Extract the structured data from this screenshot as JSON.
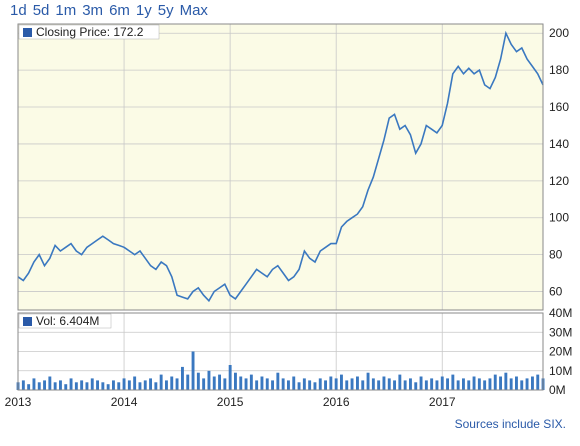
{
  "range_buttons": [
    "1d",
    "5d",
    "1m",
    "3m",
    "6m",
    "1y",
    "5y",
    "Max"
  ],
  "source": "Sources include SIX.",
  "colors": {
    "price_bg": "#fbfbe6",
    "vol_bg": "#ffffff",
    "line": "#3a78c0",
    "bar": "#3a78c0",
    "legend_box": "#2a5aa8",
    "grid": "#c8c8c8",
    "frame": "#8a8a8a"
  },
  "chart_data": [
    {
      "type": "line",
      "legend": "Closing Price: 172.2",
      "ylim": [
        50,
        205
      ],
      "yticks": [
        60,
        80,
        100,
        120,
        140,
        160,
        180,
        200
      ],
      "x_range": [
        2013.0,
        2017.95
      ],
      "xticks": [
        "2013",
        "2014",
        "2015",
        "2016",
        "2017"
      ],
      "grid": true,
      "x": [
        2013.0,
        2013.05,
        2013.1,
        2013.15,
        2013.2,
        2013.25,
        2013.3,
        2013.35,
        2013.4,
        2013.45,
        2013.5,
        2013.55,
        2013.6,
        2013.65,
        2013.7,
        2013.75,
        2013.8,
        2013.85,
        2013.9,
        2013.95,
        2014.0,
        2014.05,
        2014.1,
        2014.15,
        2014.2,
        2014.25,
        2014.3,
        2014.35,
        2014.4,
        2014.45,
        2014.5,
        2014.55,
        2014.6,
        2014.65,
        2014.7,
        2014.75,
        2014.8,
        2014.85,
        2014.9,
        2014.95,
        2015.0,
        2015.05,
        2015.1,
        2015.15,
        2015.2,
        2015.25,
        2015.3,
        2015.35,
        2015.4,
        2015.45,
        2015.5,
        2015.55,
        2015.6,
        2015.65,
        2015.7,
        2015.75,
        2015.8,
        2015.85,
        2015.9,
        2015.95,
        2016.0,
        2016.05,
        2016.1,
        2016.15,
        2016.2,
        2016.25,
        2016.3,
        2016.35,
        2016.4,
        2016.45,
        2016.5,
        2016.55,
        2016.6,
        2016.65,
        2016.7,
        2016.75,
        2016.8,
        2016.85,
        2016.9,
        2016.95,
        2017.0,
        2017.05,
        2017.1,
        2017.15,
        2017.2,
        2017.25,
        2017.3,
        2017.35,
        2017.4,
        2017.45,
        2017.5,
        2017.55,
        2017.6,
        2017.65,
        2017.7,
        2017.75,
        2017.8,
        2017.85,
        2017.9,
        2017.95
      ],
      "y": [
        68,
        66,
        70,
        76,
        80,
        74,
        78,
        85,
        82,
        84,
        86,
        82,
        80,
        84,
        86,
        88,
        90,
        88,
        86,
        85,
        84,
        82,
        80,
        82,
        78,
        74,
        72,
        76,
        74,
        68,
        58,
        57,
        56,
        60,
        62,
        58,
        55,
        60,
        62,
        64,
        58,
        56,
        60,
        64,
        68,
        72,
        70,
        68,
        72,
        74,
        70,
        66,
        68,
        72,
        82,
        78,
        76,
        82,
        84,
        86,
        86,
        95,
        98,
        100,
        102,
        106,
        115,
        122,
        132,
        142,
        154,
        156,
        148,
        150,
        145,
        135,
        140,
        150,
        148,
        146,
        150,
        162,
        178,
        182,
        178,
        181,
        178,
        180,
        172,
        170,
        176,
        186,
        200,
        194,
        190,
        192,
        186,
        182,
        178,
        172
      ]
    },
    {
      "type": "bar",
      "legend": "Vol: 6.404M",
      "ylim": [
        0,
        40
      ],
      "ytick_labels": [
        "0M",
        "10M",
        "20M",
        "30M",
        "40M"
      ],
      "x_range": [
        2013.0,
        2017.95
      ],
      "grid": true,
      "x": [
        2013.0,
        2013.05,
        2013.1,
        2013.15,
        2013.2,
        2013.25,
        2013.3,
        2013.35,
        2013.4,
        2013.45,
        2013.5,
        2013.55,
        2013.6,
        2013.65,
        2013.7,
        2013.75,
        2013.8,
        2013.85,
        2013.9,
        2013.95,
        2014.0,
        2014.05,
        2014.1,
        2014.15,
        2014.2,
        2014.25,
        2014.3,
        2014.35,
        2014.4,
        2014.45,
        2014.5,
        2014.55,
        2014.6,
        2014.65,
        2014.7,
        2014.75,
        2014.8,
        2014.85,
        2014.9,
        2014.95,
        2015.0,
        2015.05,
        2015.1,
        2015.15,
        2015.2,
        2015.25,
        2015.3,
        2015.35,
        2015.4,
        2015.45,
        2015.5,
        2015.55,
        2015.6,
        2015.65,
        2015.7,
        2015.75,
        2015.8,
        2015.85,
        2015.9,
        2015.95,
        2016.0,
        2016.05,
        2016.1,
        2016.15,
        2016.2,
        2016.25,
        2016.3,
        2016.35,
        2016.4,
        2016.45,
        2016.5,
        2016.55,
        2016.6,
        2016.65,
        2016.7,
        2016.75,
        2016.8,
        2016.85,
        2016.9,
        2016.95,
        2017.0,
        2017.05,
        2017.1,
        2017.15,
        2017.2,
        2017.25,
        2017.3,
        2017.35,
        2017.4,
        2017.45,
        2017.5,
        2017.55,
        2017.6,
        2017.65,
        2017.7,
        2017.75,
        2017.8,
        2017.85,
        2017.9,
        2017.95
      ],
      "y": [
        4,
        5,
        3,
        6,
        4,
        5,
        7,
        4,
        5,
        3,
        6,
        4,
        5,
        4,
        6,
        5,
        4,
        3,
        5,
        4,
        6,
        5,
        7,
        4,
        5,
        6,
        4,
        8,
        5,
        7,
        6,
        12,
        8,
        20,
        9,
        6,
        10,
        7,
        8,
        6,
        13,
        9,
        7,
        6,
        8,
        5,
        7,
        6,
        5,
        9,
        6,
        5,
        7,
        4,
        6,
        5,
        4,
        6,
        5,
        7,
        6,
        8,
        5,
        6,
        7,
        5,
        9,
        6,
        5,
        7,
        6,
        5,
        8,
        5,
        6,
        4,
        7,
        5,
        6,
        5,
        7,
        6,
        8,
        5,
        6,
        5,
        7,
        6,
        5,
        6,
        8,
        7,
        9,
        6,
        7,
        5,
        6,
        7,
        8,
        6
      ]
    }
  ]
}
